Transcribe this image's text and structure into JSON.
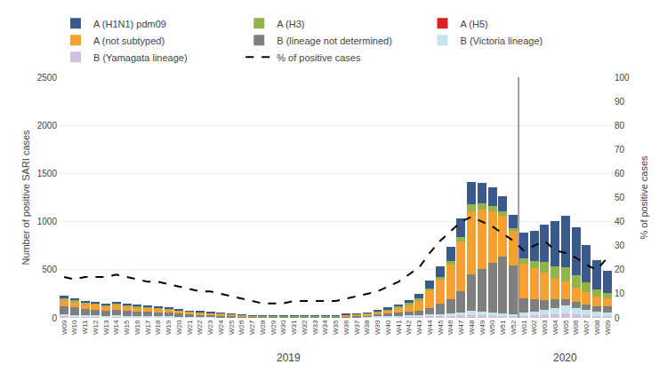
{
  "chart_data": {
    "type": "bar",
    "stacked": true,
    "grid": true,
    "legend": "top",
    "categories": [
      "W09",
      "W10",
      "W11",
      "W12",
      "W13",
      "W14",
      "W15",
      "W16",
      "W17",
      "W18",
      "W19",
      "W20",
      "W21",
      "W22",
      "W23",
      "W24",
      "W25",
      "W26",
      "W27",
      "W28",
      "W29",
      "W30",
      "W31",
      "W32",
      "W33",
      "W34",
      "W35",
      "W36",
      "W37",
      "W38",
      "W39",
      "W40",
      "W41",
      "W42",
      "W43",
      "W44",
      "W45",
      "W46",
      "W47",
      "W48",
      "W49",
      "W50",
      "W51",
      "W52",
      "W01",
      "W02",
      "W03",
      "W04",
      "W05",
      "W06",
      "W07",
      "W08",
      "W09"
    ],
    "series": [
      {
        "name": "B (Yamagata lineage)",
        "color": "#CFC0DC",
        "values": [
          14,
          12,
          10,
          10,
          9,
          10,
          9,
          7,
          7,
          5,
          5,
          5,
          3,
          3,
          3,
          3,
          3,
          2,
          2,
          2,
          2,
          2,
          2,
          2,
          2,
          2,
          2,
          3,
          3,
          3,
          5,
          7,
          9,
          10,
          12,
          14,
          17,
          20,
          24,
          28,
          24,
          20,
          17,
          14,
          20,
          24,
          28,
          35,
          42,
          35,
          28,
          20,
          17
        ]
      },
      {
        "name": "B (Victoria lineage)",
        "color": "#C5E5EE",
        "values": [
          20,
          17,
          14,
          14,
          12,
          14,
          12,
          10,
          10,
          9,
          9,
          7,
          5,
          5,
          5,
          5,
          3,
          3,
          3,
          3,
          3,
          3,
          3,
          3,
          3,
          3,
          3,
          5,
          5,
          7,
          9,
          10,
          12,
          14,
          17,
          20,
          24,
          28,
          35,
          50,
          42,
          35,
          28,
          20,
          35,
          42,
          55,
          70,
          85,
          70,
          55,
          42,
          35
        ]
      },
      {
        "name": "B (lineage not determined)",
        "color": "#7F7F7F",
        "values": [
          85,
          78,
          70,
          62,
          55,
          62,
          55,
          48,
          45,
          42,
          38,
          35,
          28,
          24,
          20,
          17,
          14,
          10,
          9,
          7,
          7,
          7,
          7,
          7,
          7,
          7,
          7,
          10,
          12,
          14,
          20,
          28,
          35,
          42,
          48,
          70,
          105,
          145,
          220,
          370,
          440,
          515,
          590,
          510,
          145,
          130,
          105,
          85,
          70,
          62,
          55,
          55,
          70
        ]
      },
      {
        "name": "A (not subtyped)",
        "color": "#F5A030",
        "values": [
          70,
          62,
          55,
          55,
          48,
          55,
          48,
          45,
          42,
          38,
          35,
          28,
          24,
          20,
          20,
          17,
          14,
          10,
          7,
          5,
          5,
          5,
          5,
          5,
          5,
          5,
          5,
          10,
          14,
          17,
          24,
          35,
          48,
          70,
          105,
          180,
          250,
          360,
          510,
          660,
          620,
          540,
          430,
          360,
          360,
          325,
          285,
          215,
          180,
          145,
          130,
          105,
          85
        ]
      },
      {
        "name": "A (H5)",
        "color": "#E02020",
        "values": [
          0,
          0,
          0,
          0,
          0,
          0,
          0,
          0,
          0,
          0,
          0,
          0,
          0,
          0,
          0,
          0,
          0,
          0,
          0,
          0,
          0,
          0,
          0,
          0,
          0,
          0,
          0,
          0,
          0,
          0,
          0,
          0,
          0,
          0,
          0,
          0,
          0,
          0,
          0,
          0,
          0,
          0,
          0,
          0,
          0,
          0,
          0,
          0,
          0,
          0,
          0,
          0,
          0
        ]
      },
      {
        "name": "A (H3)",
        "color": "#92B44A",
        "values": [
          18,
          17,
          14,
          12,
          12,
          14,
          12,
          12,
          9,
          9,
          9,
          6,
          6,
          6,
          6,
          6,
          5,
          3,
          3,
          3,
          3,
          3,
          3,
          3,
          3,
          3,
          3,
          5,
          6,
          6,
          9,
          12,
          15,
          18,
          18,
          25,
          32,
          40,
          55,
          70,
          62,
          55,
          40,
          32,
          55,
          70,
          105,
          130,
          145,
          130,
          105,
          70,
          55
        ]
      },
      {
        "name": "A (H1N1) pdm09",
        "color": "#3A5A8C",
        "values": [
          20,
          18,
          15,
          14,
          12,
          14,
          12,
          10,
          10,
          10,
          8,
          8,
          5,
          8,
          8,
          5,
          5,
          3,
          3,
          3,
          3,
          3,
          3,
          3,
          3,
          3,
          3,
          5,
          6,
          8,
          10,
          16,
          22,
          35,
          50,
          80,
          110,
          145,
          185,
          230,
          215,
          190,
          155,
          135,
          270,
          310,
          390,
          470,
          540,
          500,
          385,
          310,
          230
        ]
      },
      {
        "name": "% of positive cases",
        "type": "line",
        "axis": "y2",
        "color": "black",
        "line_style": "dashed",
        "values": [
          17,
          16,
          17,
          17,
          17,
          18,
          17,
          16,
          15,
          15,
          14,
          13,
          12,
          11,
          11,
          10,
          9,
          8,
          7,
          6,
          6,
          6,
          7,
          7,
          7,
          7,
          7,
          8,
          9,
          10,
          11,
          13,
          15,
          18,
          21,
          27,
          32,
          36,
          40,
          42,
          40,
          38,
          35,
          32,
          28,
          30,
          32,
          28,
          27,
          25,
          22,
          20,
          25
        ]
      }
    ],
    "ylabel": "Number of positive SARI cases",
    "y2label": "% of positive cases",
    "ylim": [
      0,
      2500
    ],
    "yticks": [
      0,
      500,
      1000,
      1500,
      2000,
      2500
    ],
    "y2lim": [
      0,
      100
    ],
    "y2ticks": [
      0,
      10,
      20,
      30,
      40,
      50,
      60,
      70,
      80,
      90,
      100
    ],
    "annotations": [
      "2019",
      "2020"
    ]
  }
}
